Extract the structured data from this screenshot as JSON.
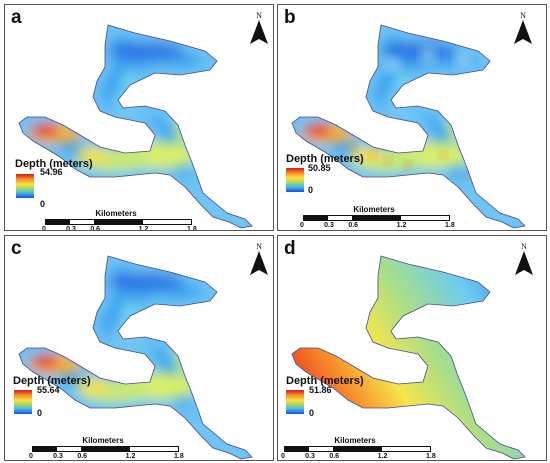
{
  "panels": [
    {
      "label": "a",
      "north": "N",
      "legend_title": "Depth (meters)",
      "legend_max": "54.96",
      "legend_min": "0",
      "scale_title": "Kilometers",
      "scale_ticks": [
        "0",
        "0.3",
        "0.6",
        "1.2",
        "1.8"
      ],
      "style": "smooth"
    },
    {
      "label": "b",
      "north": "N",
      "legend_title": "Depth (meters)",
      "legend_max": "50.85",
      "legend_min": "0",
      "scale_title": "Kilometers",
      "scale_ticks": [
        "0",
        "0.3",
        "0.6",
        "1.2",
        "1.8"
      ],
      "style": "spotty"
    },
    {
      "label": "c",
      "north": "N",
      "legend_title": "Depth (meters)",
      "legend_max": "55.64",
      "legend_min": "0",
      "scale_title": "Kilometers",
      "scale_ticks": [
        "0",
        "0.3",
        "0.6",
        "1.2",
        "1.8"
      ],
      "style": "smooth"
    },
    {
      "label": "d",
      "north": "N",
      "legend_title": "Depth (meters)",
      "legend_max": "51.86",
      "legend_min": "0",
      "scale_title": "Kilometers",
      "scale_ticks": [
        "0",
        "0.3",
        "0.6",
        "1.2",
        "1.8"
      ],
      "style": "gradient"
    }
  ],
  "colors": {
    "deep": "#d7191c",
    "mid": "#ffe03c",
    "shallow": "#1f4fd6",
    "water_light": "#9fdcf5",
    "border": "#555555"
  }
}
